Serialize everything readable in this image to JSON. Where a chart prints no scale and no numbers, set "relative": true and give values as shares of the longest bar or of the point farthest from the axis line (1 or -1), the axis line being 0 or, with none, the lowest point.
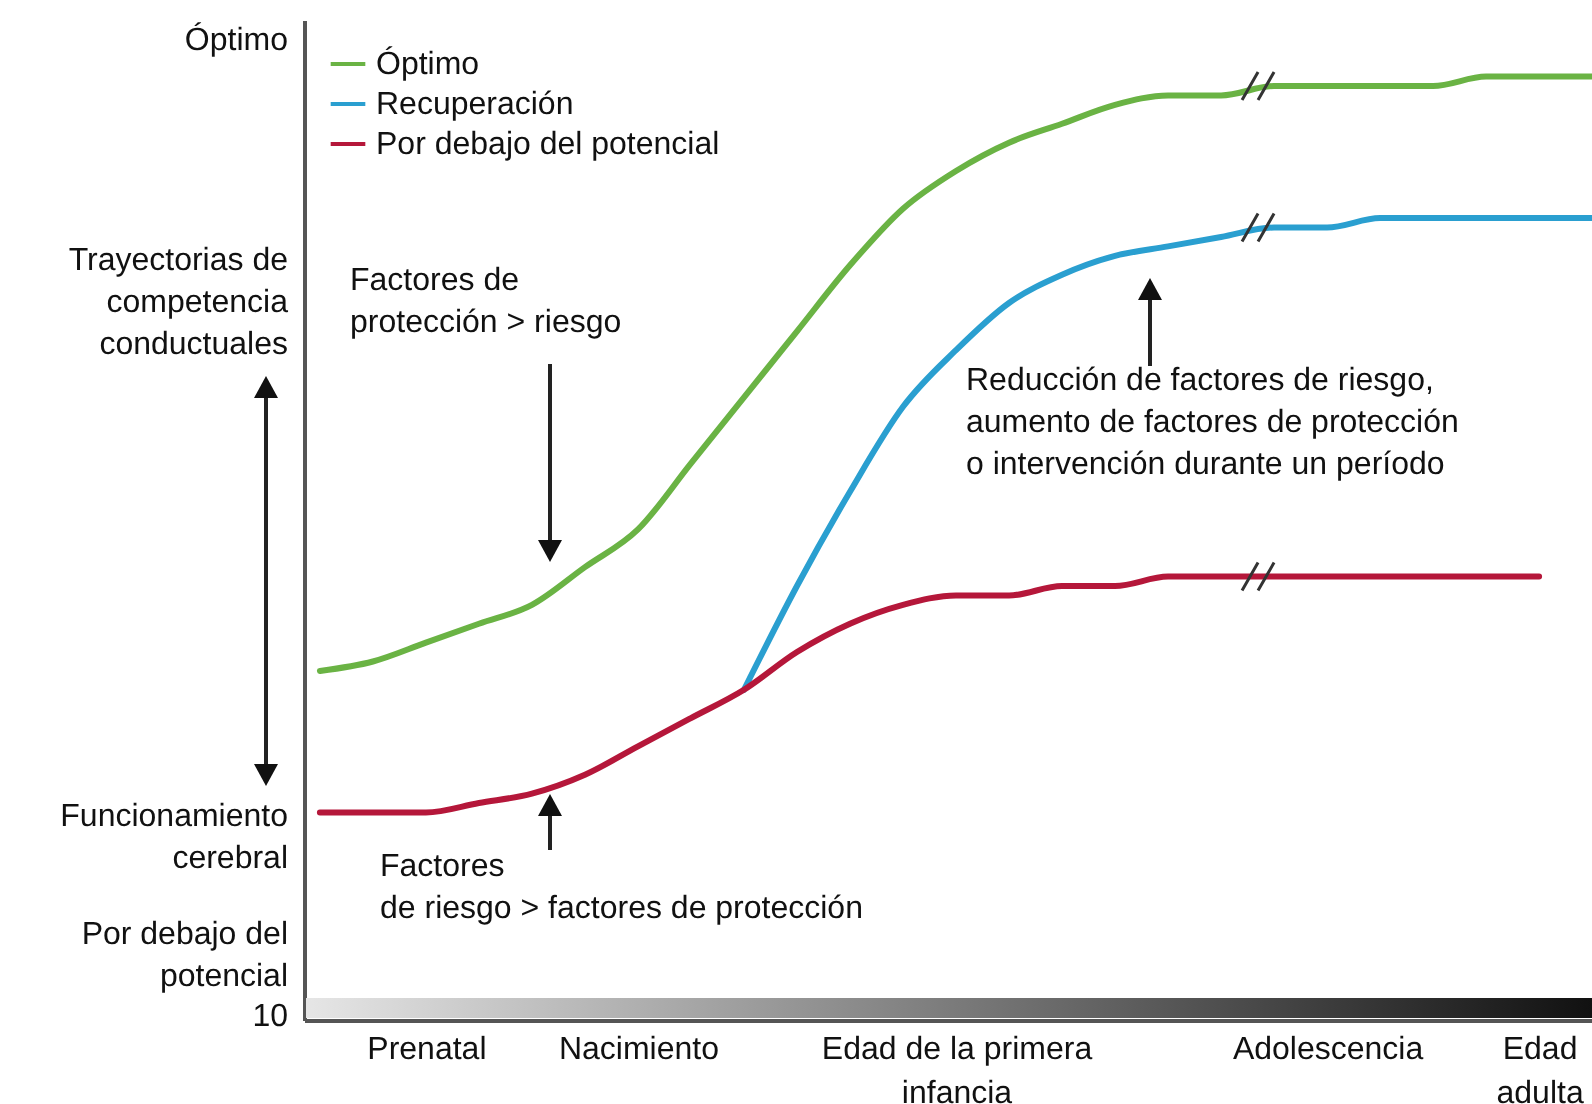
{
  "chart_data": {
    "type": "line",
    "relative": true,
    "legend": "top left",
    "categories": [
      null,
      null,
      "Prenatal",
      null,
      null,
      null,
      "Nacimiento",
      null,
      null,
      null,
      null,
      null,
      "Edad de la primera\ninfancia",
      null,
      null,
      null,
      null,
      null,
      null,
      "Adolescencia",
      null,
      null,
      null,
      "Edad\nadulta",
      null
    ],
    "series": [
      {
        "name": "Óptimo",
        "color": "#6ab344",
        "values": [
          0.37,
          0.38,
          0.4,
          0.42,
          0.44,
          0.48,
          0.52,
          0.59,
          0.66,
          0.73,
          0.8,
          0.86,
          0.9,
          0.93,
          0.95,
          0.97,
          0.98,
          0.98,
          0.99,
          0.99,
          0.99,
          0.99,
          1.0,
          1.0,
          1
        ]
      },
      {
        "name": "Recuperación",
        "color": "#2a9fd0",
        "values": [
          null,
          null,
          null,
          null,
          null,
          null,
          null,
          null,
          0.35,
          0.46,
          0.56,
          0.65,
          0.71,
          0.76,
          0.79,
          0.81,
          0.82,
          0.83,
          0.84,
          0.84,
          0.85,
          0.85,
          0.85,
          0.85,
          0.85
        ]
      },
      {
        "name": "Por debajo del potencial",
        "color": "#b5173a",
        "values": [
          0.22,
          0.22,
          0.22,
          0.23,
          0.24,
          0.26,
          0.29,
          0.32,
          0.35,
          0.39,
          0.42,
          0.44,
          0.45,
          0.45,
          0.46,
          0.46,
          0.47,
          0.47,
          0.47,
          0.47,
          0.47,
          0.47,
          0.47,
          0.47,
          null
        ]
      }
    ],
    "annotations": [
      "Óptimo",
      "Trayectorias de\ncompetencia\nconductuales",
      "Funcionamiento\ncerebral",
      "Por debajo del\npotencial",
      "10",
      "Factores de\nprotección > riesgo",
      "Factores\nde riesgo > factores de protección",
      "Reducción de factores de riesgo,\naumento de factores de protección\no intervención durante un período"
    ]
  }
}
